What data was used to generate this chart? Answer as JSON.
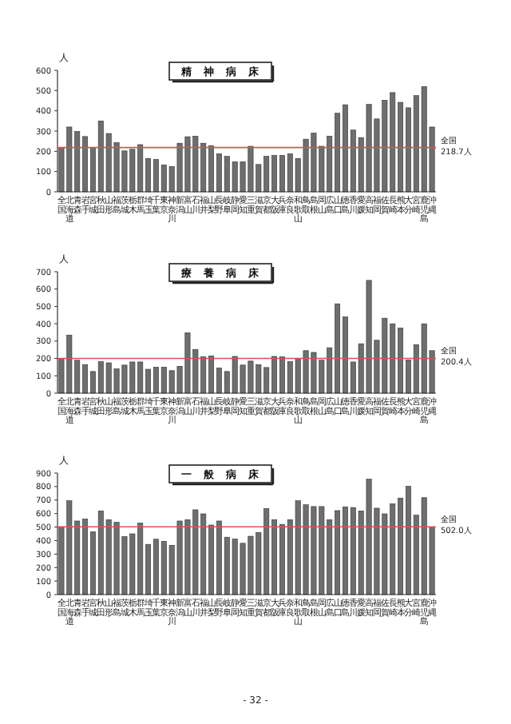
{
  "chart_data": [
    {
      "type": "bar",
      "title": "精　神　病　床",
      "ylabel": "人",
      "color": "#6e6e6e",
      "ylim": [
        0,
        600
      ],
      "yticks": [
        0,
        100,
        200,
        300,
        400,
        500,
        600
      ],
      "grid": false,
      "categories": [
        "全国",
        "北海道",
        "青森",
        "岩手",
        "宮城",
        "秋田",
        "山形",
        "福島",
        "茨城",
        "栃木",
        "群馬",
        "埼玉",
        "千葉",
        "東京",
        "神奈川",
        "新潟",
        "富山",
        "石川",
        "福井",
        "山梨",
        "長野",
        "岐阜",
        "静岡",
        "愛知",
        "三重",
        "滋賀",
        "京都",
        "大阪",
        "兵庫",
        "奈良",
        "和歌山",
        "鳥取",
        "島根",
        "岡山",
        "広島",
        "山口",
        "徳島",
        "香川",
        "愛媛",
        "高知",
        "福岡",
        "佐賀",
        "長崎",
        "熊本",
        "大分",
        "宮崎",
        "鹿児島",
        "沖縄"
      ],
      "values": [
        218.7,
        320,
        298,
        273,
        220,
        350,
        288,
        243,
        202,
        210,
        233,
        165,
        160,
        133,
        125,
        240,
        272,
        275,
        240,
        228,
        188,
        175,
        148,
        148,
        225,
        135,
        175,
        180,
        180,
        188,
        165,
        260,
        290,
        225,
        275,
        388,
        430,
        305,
        268,
        432,
        360,
        452,
        490,
        442,
        415,
        475,
        520,
        320
      ],
      "ref_lines": [
        {
          "axis": "y",
          "value": 218.7,
          "label": "全国 218.7人",
          "color": "#e05050"
        }
      ]
    },
    {
      "type": "bar",
      "title": "療　養　病　床",
      "ylabel": "人",
      "color": "#6e6e6e",
      "ylim": [
        0,
        700
      ],
      "yticks": [
        0,
        100,
        200,
        300,
        400,
        500,
        600,
        700
      ],
      "grid": false,
      "categories": [
        "全国",
        "北海道",
        "青森",
        "岩手",
        "宮城",
        "秋田",
        "山形",
        "福島",
        "茨城",
        "栃木",
        "群馬",
        "埼玉",
        "千葉",
        "東京",
        "神奈川",
        "新潟",
        "富山",
        "石川",
        "福井",
        "山梨",
        "長野",
        "岐阜",
        "静岡",
        "愛知",
        "三重",
        "滋賀",
        "京都",
        "大阪",
        "兵庫",
        "奈良",
        "和歌山",
        "鳥取",
        "島根",
        "岡山",
        "広島",
        "山口",
        "徳島",
        "香川",
        "愛媛",
        "高知",
        "福岡",
        "佐賀",
        "長崎",
        "熊本",
        "大分",
        "宮崎",
        "鹿児島",
        "沖縄"
      ],
      "values": [
        200.4,
        335,
        190,
        165,
        125,
        182,
        175,
        140,
        162,
        180,
        180,
        138,
        150,
        150,
        130,
        155,
        348,
        252,
        210,
        215,
        145,
        125,
        212,
        162,
        185,
        165,
        148,
        212,
        210,
        182,
        200,
        245,
        235,
        190,
        262,
        515,
        440,
        180,
        285,
        650,
        305,
        432,
        400,
        375,
        192,
        280,
        400,
        245
      ],
      "ref_lines": [
        {
          "axis": "y",
          "value": 200.4,
          "label": "全国 200.4人",
          "color": "#e05050"
        }
      ]
    },
    {
      "type": "bar",
      "title": "一　般　病　床",
      "ylabel": "人",
      "color": "#6e6e6e",
      "ylim": [
        0,
        900
      ],
      "yticks": [
        0,
        100,
        200,
        300,
        400,
        500,
        600,
        700,
        800,
        900
      ],
      "grid": false,
      "categories": [
        "全国",
        "北海道",
        "青森",
        "岩手",
        "宮城",
        "秋田",
        "山形",
        "福島",
        "茨城",
        "栃木",
        "群馬",
        "埼玉",
        "千葉",
        "東京",
        "神奈川",
        "新潟",
        "富山",
        "石川",
        "福井",
        "山梨",
        "長野",
        "岐阜",
        "静岡",
        "愛知",
        "三重",
        "滋賀",
        "京都",
        "大阪",
        "兵庫",
        "奈良",
        "和歌山",
        "鳥取",
        "島根",
        "岡山",
        "広島",
        "山口",
        "徳島",
        "香川",
        "愛媛",
        "高知",
        "福岡",
        "佐賀",
        "長崎",
        "熊本",
        "大分",
        "宮崎",
        "鹿児島",
        "沖縄"
      ],
      "values": [
        502.0,
        695,
        545,
        560,
        465,
        620,
        555,
        535,
        430,
        450,
        530,
        372,
        410,
        395,
        365,
        545,
        555,
        628,
        598,
        515,
        545,
        425,
        412,
        380,
        432,
        460,
        638,
        555,
        520,
        555,
        695,
        665,
        652,
        652,
        555,
        622,
        650,
        645,
        620,
        855,
        640,
        598,
        672,
        715,
        802,
        588,
        718,
        500
      ],
      "ref_lines": [
        {
          "axis": "y",
          "value": 502.0,
          "label": "全国 502.0人",
          "color": "#e05050"
        }
      ],
      "annotations": [
        "- 32 -"
      ]
    }
  ]
}
